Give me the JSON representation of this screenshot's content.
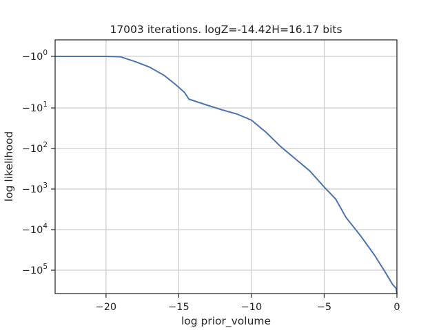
{
  "chart_data": {
    "type": "line",
    "title": "17003 iterations. logZ=-14.42H=16.17 bits",
    "xlabel": "log prior_volume",
    "ylabel": "log likelihood",
    "xlim": [
      -23.5,
      0
    ],
    "ylim": [
      -400000.0,
      -0.5
    ],
    "yscale": "symlog",
    "grid": true,
    "line_color": "#4c72b0",
    "x_ticks": [
      -20,
      -15,
      -10,
      -5,
      0
    ],
    "x_tick_labels": [
      "−20",
      "−15",
      "−10",
      "−5",
      "0"
    ],
    "y_ticks": [
      -1,
      -10,
      -100,
      -1000,
      -10000,
      -100000
    ],
    "y_tick_labels": [
      {
        "base": "−10",
        "exp": "0"
      },
      {
        "base": "−10",
        "exp": "1"
      },
      {
        "base": "−10",
        "exp": "2"
      },
      {
        "base": "−10",
        "exp": "3"
      },
      {
        "base": "−10",
        "exp": "4"
      },
      {
        "base": "−10",
        "exp": "5"
      }
    ],
    "series": [
      {
        "x": [
          -23.5,
          -21.5,
          -20,
          -19,
          -18,
          -17,
          -16,
          -15.2,
          -14.6,
          -14.3,
          -13,
          -12,
          -11,
          -10,
          -9,
          -8,
          -7,
          -6,
          -5,
          -4.2,
          -3.5,
          -2.5,
          -1.5,
          -0.8,
          -0.3,
          -0.05,
          0
        ],
        "y": [
          -0.79,
          -0.84,
          -0.89,
          -1.02,
          -1.26,
          -1.62,
          -2.34,
          -3.55,
          -5.01,
          -6.76,
          -8.91,
          -11.22,
          -14.13,
          -20.0,
          -39.81,
          -89.13,
          -177.8,
          -354.8,
          -891.3,
          -1778,
          -5012,
          -14130,
          -44670,
          -112200,
          -223900,
          -281800,
          -446700
        ]
      }
    ]
  }
}
